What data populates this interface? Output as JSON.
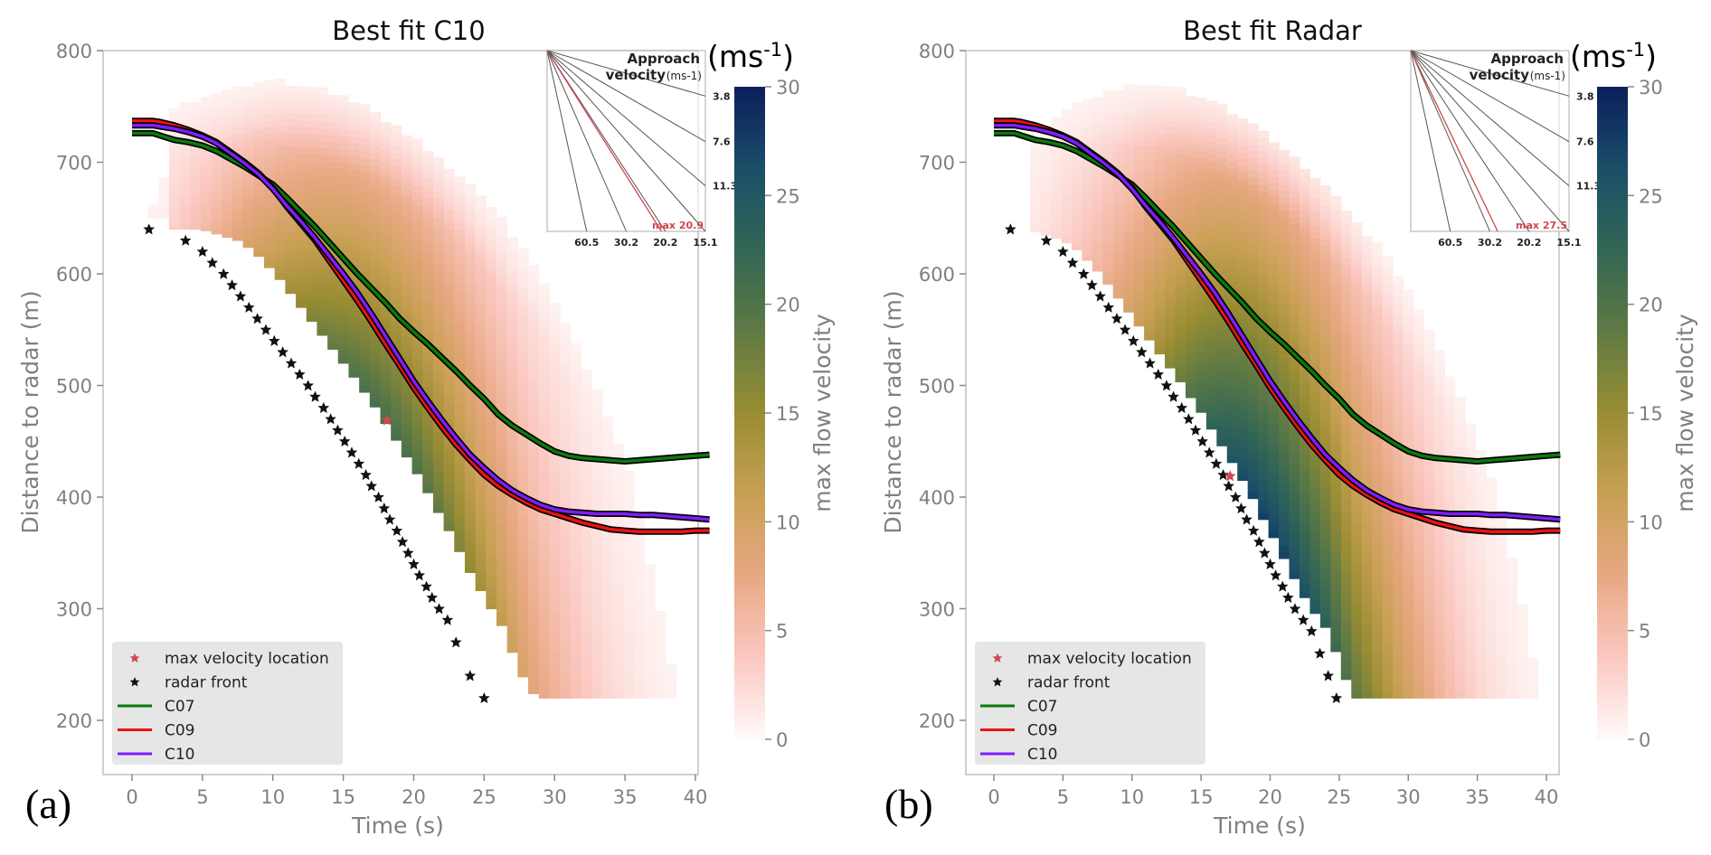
{
  "chart_data": [
    {
      "panel_letter": "(a)",
      "type": "heatmap",
      "title": "Best fit C10",
      "xlabel": "Time (s)",
      "ylabel": "Distance to radar (m)",
      "xlim": [
        -2,
        41
      ],
      "ylim": [
        150,
        800
      ],
      "xticks": [
        "0",
        "5",
        "10",
        "15",
        "20",
        "25",
        "30",
        "35",
        "40"
      ],
      "yticks": [
        "200",
        "300",
        "400",
        "500",
        "600",
        "700",
        "800"
      ],
      "colorbar": {
        "label": "max flow velocity",
        "unit": "(ms-1)",
        "unit_base": "(ms",
        "unit_sup": "-1",
        "unit_close": ")",
        "range": [
          0,
          30
        ],
        "ticks": [
          "0",
          "5",
          "10",
          "15",
          "20",
          "25",
          "30"
        ],
        "colors": [
          "#fffafa",
          "#fbc9c2",
          "#e8a883",
          "#c9a055",
          "#9a8d33",
          "#5f7a44",
          "#336655",
          "#1a4f68",
          "#0b1f5c"
        ]
      },
      "heatmap_field": {
        "description": "max flow velocity per time/distance cell; band between lower and upper envelope",
        "peak_velocity": 20.9,
        "front_shift_s": 1.2
      },
      "series": [
        {
          "name": "C07",
          "color": "#0a7a0a",
          "x": [
            0,
            1.5,
            2,
            3,
            4,
            5,
            6,
            7,
            8,
            9,
            10,
            11,
            12,
            13,
            14,
            15,
            16,
            17,
            18,
            19,
            20,
            21,
            22,
            23,
            24,
            25,
            26,
            27,
            28,
            29,
            30,
            31,
            32,
            33,
            34,
            35,
            36,
            37,
            38,
            39,
            40,
            41
          ],
          "y": [
            726,
            726,
            724,
            720,
            718,
            715,
            710,
            703,
            696,
            688,
            680,
            668,
            655,
            642,
            628,
            614,
            600,
            587,
            574,
            560,
            548,
            537,
            525,
            513,
            500,
            488,
            474,
            464,
            456,
            448,
            441,
            437,
            435,
            434,
            433,
            432,
            433,
            434,
            435,
            436,
            437,
            438
          ]
        },
        {
          "name": "C09",
          "color": "#ee1111",
          "x": [
            0,
            1.5,
            2,
            3,
            4,
            5,
            6,
            7,
            8,
            9,
            10,
            11,
            12,
            13,
            14,
            15,
            16,
            17,
            18,
            19,
            20,
            21,
            22,
            23,
            24,
            25,
            26,
            27,
            28,
            29,
            30,
            31,
            32,
            33,
            34,
            35,
            36,
            37,
            38,
            39,
            40,
            41
          ],
          "y": [
            737,
            737,
            736,
            733,
            729,
            724,
            718,
            709,
            700,
            690,
            677,
            660,
            645,
            630,
            612,
            594,
            576,
            557,
            537,
            518,
            498,
            480,
            463,
            447,
            433,
            420,
            410,
            402,
            395,
            389,
            385,
            381,
            377,
            374,
            371,
            370,
            369,
            369,
            369,
            369,
            370,
            370
          ]
        },
        {
          "name": "C10",
          "color": "#7f1dff",
          "x": [
            0,
            1.5,
            2,
            3,
            4,
            5,
            6,
            7,
            8,
            9,
            10,
            11,
            12,
            13,
            14,
            15,
            16,
            17,
            18,
            19,
            20,
            21,
            22,
            23,
            24,
            25,
            26,
            27,
            28,
            29,
            30,
            31,
            32,
            33,
            34,
            35,
            36,
            37,
            38,
            39,
            40,
            41
          ],
          "y": [
            733,
            733,
            732,
            730,
            727,
            723,
            717,
            708,
            699,
            689,
            676,
            661,
            647,
            632,
            616,
            600,
            583,
            564,
            544,
            524,
            504,
            486,
            469,
            453,
            438,
            426,
            415,
            406,
            399,
            393,
            389,
            387,
            386,
            385,
            385,
            385,
            384,
            384,
            383,
            382,
            381,
            380
          ]
        }
      ],
      "radar_front": {
        "name": "radar front",
        "color": "#111111",
        "x": [
          1.2,
          3.8,
          5.0,
          5.7,
          6.5,
          7.1,
          7.7,
          8.3,
          8.9,
          9.5,
          10.1,
          10.7,
          11.3,
          11.9,
          12.5,
          13.0,
          13.6,
          14.1,
          14.6,
          15.1,
          15.6,
          16.1,
          16.6,
          17.0,
          17.5,
          17.9,
          18.3,
          18.8,
          19.2,
          19.6,
          20.0,
          20.4,
          20.9,
          21.3,
          21.8,
          22.4,
          23.0,
          24.0,
          25.0
        ],
        "y": [
          640,
          630,
          620,
          610,
          600,
          590,
          580,
          570,
          560,
          550,
          540,
          530,
          520,
          510,
          500,
          490,
          480,
          470,
          460,
          450,
          440,
          430,
          420,
          410,
          400,
          390,
          380,
          370,
          360,
          350,
          340,
          330,
          320,
          310,
          300,
          290,
          270,
          240,
          220
        ]
      },
      "max_velocity_location": {
        "name": "max velocity location",
        "color": "#d0474f",
        "x": 18.1,
        "y": 469
      },
      "inset": {
        "title_line1": "Approach",
        "title_line2": "velocity",
        "unit": "(ms-1)",
        "right_ticks": [
          "3.8",
          "7.6",
          "11.3"
        ],
        "bottom_ticks": [
          "60.5",
          "30.2",
          "20.2",
          "15.1"
        ],
        "max_label": "max 20.9",
        "max_value": 20.9,
        "line_velocities": [
          3.8,
          7.6,
          11.3,
          15.1,
          20.2,
          30.2,
          60.5
        ]
      },
      "legend": [
        "max velocity location",
        "radar front",
        "C07",
        "C09",
        "C10"
      ],
      "legend_position": "lower-left"
    },
    {
      "panel_letter": "(b)",
      "type": "heatmap",
      "title": "Best fit Radar",
      "xlabel": "Time (s)",
      "ylabel": "Distance to radar (m)",
      "xlim": [
        -2,
        41
      ],
      "ylim": [
        150,
        800
      ],
      "xticks": [
        "0",
        "5",
        "10",
        "15",
        "20",
        "25",
        "30",
        "35",
        "40"
      ],
      "yticks": [
        "200",
        "300",
        "400",
        "500",
        "600",
        "700",
        "800"
      ],
      "colorbar": {
        "label": "max flow velocity",
        "unit": "(ms-1)",
        "unit_base": "(ms",
        "unit_sup": "-1",
        "unit_close": ")",
        "range": [
          0,
          30
        ],
        "ticks": [
          "0",
          "5",
          "10",
          "15",
          "20",
          "25",
          "30"
        ],
        "colors": [
          "#fffafa",
          "#fbc9c2",
          "#e8a883",
          "#c9a055",
          "#9a8d33",
          "#5f7a44",
          "#336655",
          "#1a4f68",
          "#0b1f5c"
        ]
      },
      "heatmap_field": {
        "description": "max flow velocity per time/distance cell; band between lower and upper envelope",
        "peak_velocity": 27.5,
        "front_shift_s": 0.4
      },
      "series": [
        {
          "name": "C07",
          "color": "#0a7a0a",
          "x": [
            0,
            1.5,
            2,
            3,
            4,
            5,
            6,
            7,
            8,
            9,
            10,
            11,
            12,
            13,
            14,
            15,
            16,
            17,
            18,
            19,
            20,
            21,
            22,
            23,
            24,
            25,
            26,
            27,
            28,
            29,
            30,
            31,
            32,
            33,
            34,
            35,
            36,
            37,
            38,
            39,
            40,
            41
          ],
          "y": [
            726,
            726,
            724,
            720,
            718,
            715,
            710,
            703,
            696,
            688,
            680,
            668,
            655,
            642,
            628,
            614,
            600,
            587,
            574,
            560,
            548,
            537,
            525,
            513,
            500,
            488,
            474,
            464,
            456,
            448,
            441,
            437,
            435,
            434,
            433,
            432,
            433,
            434,
            435,
            436,
            437,
            438
          ]
        },
        {
          "name": "C09",
          "color": "#ee1111",
          "x": [
            0,
            1.5,
            2,
            3,
            4,
            5,
            6,
            7,
            8,
            9,
            10,
            11,
            12,
            13,
            14,
            15,
            16,
            17,
            18,
            19,
            20,
            21,
            22,
            23,
            24,
            25,
            26,
            27,
            28,
            29,
            30,
            31,
            32,
            33,
            34,
            35,
            36,
            37,
            38,
            39,
            40,
            41
          ],
          "y": [
            737,
            737,
            736,
            733,
            729,
            724,
            718,
            709,
            700,
            690,
            677,
            660,
            645,
            630,
            612,
            594,
            576,
            557,
            537,
            518,
            498,
            480,
            463,
            447,
            433,
            420,
            410,
            402,
            395,
            389,
            385,
            381,
            377,
            374,
            371,
            370,
            369,
            369,
            369,
            369,
            370,
            370
          ]
        },
        {
          "name": "C10",
          "color": "#7f1dff",
          "x": [
            0,
            1.5,
            2,
            3,
            4,
            5,
            6,
            7,
            8,
            9,
            10,
            11,
            12,
            13,
            14,
            15,
            16,
            17,
            18,
            19,
            20,
            21,
            22,
            23,
            24,
            25,
            26,
            27,
            28,
            29,
            30,
            31,
            32,
            33,
            34,
            35,
            36,
            37,
            38,
            39,
            40,
            41
          ],
          "y": [
            733,
            733,
            732,
            730,
            727,
            723,
            717,
            708,
            699,
            689,
            676,
            661,
            647,
            632,
            616,
            600,
            583,
            564,
            544,
            524,
            504,
            486,
            469,
            453,
            438,
            426,
            415,
            406,
            399,
            393,
            389,
            387,
            386,
            385,
            385,
            385,
            384,
            384,
            383,
            382,
            381,
            380
          ]
        }
      ],
      "radar_front": {
        "name": "radar front",
        "color": "#111111",
        "x": [
          1.2,
          3.8,
          5.0,
          5.7,
          6.5,
          7.1,
          7.7,
          8.3,
          8.9,
          9.5,
          10.1,
          10.7,
          11.3,
          11.9,
          12.5,
          13.0,
          13.6,
          14.1,
          14.6,
          15.1,
          15.6,
          16.1,
          16.6,
          17.0,
          17.5,
          17.9,
          18.3,
          18.8,
          19.2,
          19.6,
          20.0,
          20.4,
          20.9,
          21.3,
          21.8,
          22.4,
          23.0,
          23.6,
          24.2,
          24.8
        ],
        "y": [
          640,
          630,
          620,
          610,
          600,
          590,
          580,
          570,
          560,
          550,
          540,
          530,
          520,
          510,
          500,
          490,
          480,
          470,
          460,
          450,
          440,
          430,
          420,
          410,
          400,
          390,
          380,
          370,
          360,
          350,
          340,
          330,
          320,
          310,
          300,
          290,
          280,
          260,
          240,
          220
        ]
      },
      "max_velocity_location": {
        "name": "max velocity location",
        "color": "#d0474f",
        "x": 17.1,
        "y": 419
      },
      "inset": {
        "title_line1": "Approach",
        "title_line2": "velocity",
        "unit": "(ms-1)",
        "right_ticks": [
          "3.8",
          "7.6",
          "11.3"
        ],
        "bottom_ticks": [
          "60.5",
          "30.2",
          "20.2",
          "15.1"
        ],
        "max_label": "max 27.5",
        "max_value": 27.5,
        "line_velocities": [
          3.8,
          7.6,
          11.3,
          15.1,
          20.2,
          30.2,
          60.5
        ]
      },
      "legend": [
        "max velocity location",
        "radar front",
        "C07",
        "C09",
        "C10"
      ],
      "legend_position": "lower-left"
    }
  ]
}
